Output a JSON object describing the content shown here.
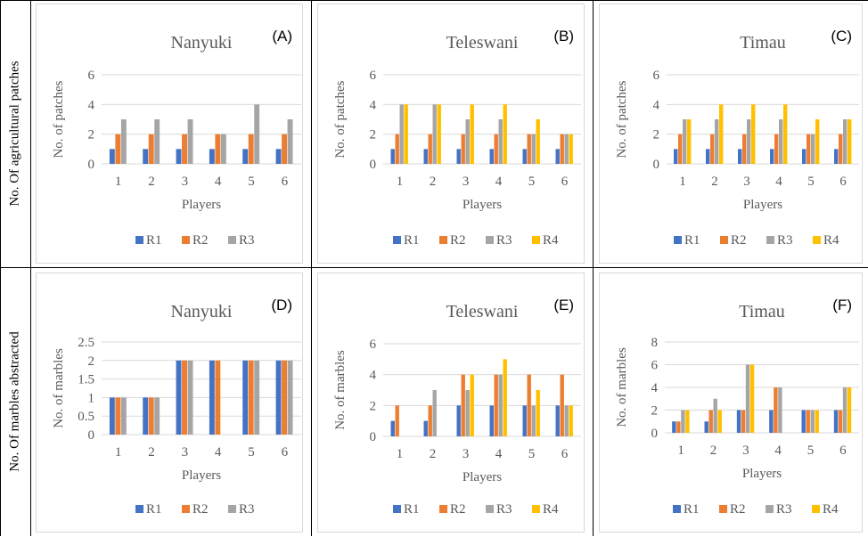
{
  "row_labels": [
    "No. Of agricultural patches",
    "No. Of marbles abstracted"
  ],
  "colors": {
    "R1": "#4472C4",
    "R2": "#ED7D31",
    "R3": "#A5A5A5",
    "R4": "#FFC000"
  },
  "chart_data": [
    {
      "type": "bar",
      "title": "Nanyuki",
      "letter": "(A)",
      "xlabel": "Players",
      "ylabel": "No. of patches",
      "categories": [
        "1",
        "2",
        "3",
        "4",
        "5",
        "6"
      ],
      "ylim": [
        0,
        6
      ],
      "yticks": [
        "0",
        "2",
        "4",
        "6"
      ],
      "series": [
        {
          "name": "R1",
          "values": [
            1,
            1,
            1,
            1,
            1,
            1
          ]
        },
        {
          "name": "R2",
          "values": [
            2,
            2,
            2,
            2,
            2,
            2
          ]
        },
        {
          "name": "R3",
          "values": [
            3,
            3,
            3,
            2,
            4,
            3
          ]
        }
      ]
    },
    {
      "type": "bar",
      "title": "Teleswani",
      "letter": "(B)",
      "xlabel": "Players",
      "ylabel": "No. of patches",
      "categories": [
        "1",
        "2",
        "3",
        "4",
        "5",
        "6"
      ],
      "ylim": [
        0,
        6
      ],
      "yticks": [
        "0",
        "2",
        "4",
        "6"
      ],
      "series": [
        {
          "name": "R1",
          "values": [
            1,
            1,
            1,
            1,
            1,
            1
          ]
        },
        {
          "name": "R2",
          "values": [
            2,
            2,
            2,
            2,
            2,
            2
          ]
        },
        {
          "name": "R3",
          "values": [
            4,
            4,
            3,
            3,
            2,
            2
          ]
        },
        {
          "name": "R4",
          "values": [
            4,
            4,
            4,
            4,
            3,
            2
          ]
        }
      ]
    },
    {
      "type": "bar",
      "title": "Timau",
      "letter": "(C)",
      "xlabel": "Players",
      "ylabel": "No. of patches",
      "categories": [
        "1",
        "2",
        "3",
        "4",
        "5",
        "6"
      ],
      "ylim": [
        0,
        6
      ],
      "yticks": [
        "0",
        "2",
        "4",
        "6"
      ],
      "series": [
        {
          "name": "R1",
          "values": [
            1,
            1,
            1,
            1,
            1,
            1
          ]
        },
        {
          "name": "R2",
          "values": [
            2,
            2,
            2,
            2,
            2,
            2
          ]
        },
        {
          "name": "R3",
          "values": [
            3,
            3,
            3,
            3,
            2,
            3
          ]
        },
        {
          "name": "R4",
          "values": [
            3,
            4,
            4,
            4,
            3,
            3
          ]
        }
      ]
    },
    {
      "type": "bar",
      "title": "Nanyuki",
      "letter": "(D)",
      "xlabel": "Players",
      "ylabel": "No. of marbles",
      "categories": [
        "1",
        "2",
        "3",
        "4",
        "5",
        "6"
      ],
      "ylim": [
        0,
        2.5
      ],
      "yticks": [
        "0",
        "0.5",
        "1",
        "1.5",
        "2",
        "2.5"
      ],
      "series": [
        {
          "name": "R1",
          "values": [
            1,
            1,
            2,
            2,
            2,
            2
          ]
        },
        {
          "name": "R2",
          "values": [
            1,
            1,
            2,
            2,
            2,
            2
          ]
        },
        {
          "name": "R3",
          "values": [
            1,
            1,
            2,
            0,
            2,
            2
          ]
        }
      ]
    },
    {
      "type": "bar",
      "title": "Teleswani",
      "letter": "(E)",
      "xlabel": "Players",
      "ylabel": "No. of marbles",
      "categories": [
        "1",
        "2",
        "3",
        "4",
        "5",
        "6"
      ],
      "ylim": [
        0,
        6
      ],
      "yticks": [
        "0",
        "2",
        "4",
        "6"
      ],
      "series": [
        {
          "name": "R1",
          "values": [
            1,
            1,
            2,
            2,
            2,
            2
          ]
        },
        {
          "name": "R2",
          "values": [
            2,
            2,
            4,
            4,
            4,
            4
          ]
        },
        {
          "name": "R3",
          "values": [
            0,
            3,
            3,
            4,
            2,
            2
          ]
        },
        {
          "name": "R4",
          "values": [
            0,
            0,
            4,
            5,
            3,
            2
          ]
        }
      ]
    },
    {
      "type": "bar",
      "title": "Timau",
      "letter": "(F)",
      "xlabel": "Players",
      "ylabel": "No. of marbles",
      "categories": [
        "1",
        "2",
        "3",
        "4",
        "5",
        "6"
      ],
      "ylim": [
        0,
        8
      ],
      "yticks": [
        "0",
        "2",
        "4",
        "6",
        "8"
      ],
      "series": [
        {
          "name": "R1",
          "values": [
            1,
            1,
            2,
            2,
            2,
            2
          ]
        },
        {
          "name": "R2",
          "values": [
            1,
            2,
            2,
            4,
            2,
            2
          ]
        },
        {
          "name": "R3",
          "values": [
            2,
            3,
            6,
            4,
            2,
            4
          ]
        },
        {
          "name": "R4",
          "values": [
            2,
            2,
            6,
            0,
            2,
            4
          ]
        }
      ]
    }
  ]
}
